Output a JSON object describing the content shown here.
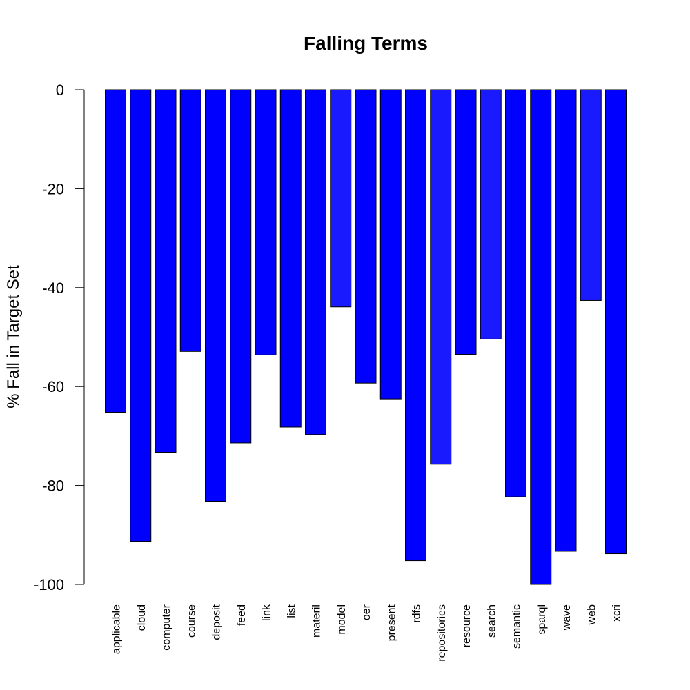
{
  "chart_data": {
    "type": "bar",
    "title": "Falling Terms",
    "xlabel": "",
    "ylabel": "% Fall in Target Set",
    "ylim": [
      -100,
      0
    ],
    "yticks": [
      0,
      -20,
      -40,
      -60,
      -80,
      -100
    ],
    "grid": false,
    "categories": [
      "applicable",
      "cloud",
      "computer",
      "course",
      "deposit",
      "feed",
      "link",
      "list",
      "materil",
      "model",
      "oer",
      "present",
      "rdfs",
      "repositories",
      "resource",
      "search",
      "semantic",
      "sparql",
      "wave",
      "web",
      "xcri"
    ],
    "values": [
      -65.2,
      -91.3,
      -73.3,
      -52.9,
      -83.2,
      -71.4,
      -53.6,
      -68.2,
      -69.7,
      -43.9,
      -59.3,
      -62.5,
      -95.2,
      -75.7,
      -53.5,
      -50.4,
      -82.3,
      -100.0,
      -93.3,
      -42.6,
      -93.8
    ],
    "bar_color": "#0000ff",
    "bar_color_light": "#1a1aff",
    "light_categories": [
      "model",
      "repositories",
      "search",
      "web"
    ]
  }
}
